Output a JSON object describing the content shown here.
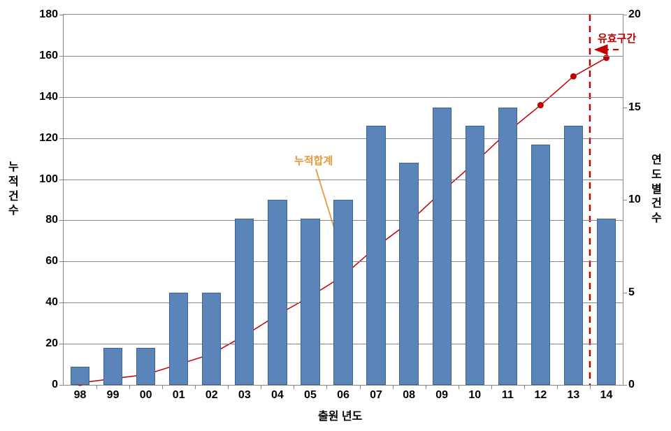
{
  "chart": {
    "type": "combo-bar-line",
    "background_color": "#ffffff",
    "plot_border_color": "#868686",
    "grid_color": "#868686",
    "xaxis": {
      "title": "출원 년도",
      "categories": [
        "98",
        "99",
        "00",
        "01",
        "02",
        "03",
        "04",
        "05",
        "06",
        "07",
        "08",
        "09",
        "10",
        "11",
        "12",
        "13",
        "14"
      ],
      "label_fontsize": 16,
      "label_fontweight": "bold"
    },
    "yaxis_left": {
      "title": "누적건수",
      "min": 0,
      "max": 180,
      "tick_step": 20,
      "ticks": [
        0,
        20,
        40,
        60,
        80,
        100,
        120,
        140,
        160,
        180
      ],
      "label_fontsize": 16
    },
    "yaxis_right": {
      "title": "연도별건수",
      "min": 0,
      "max": 20,
      "tick_step": 5,
      "ticks": [
        0,
        5,
        10,
        15,
        20
      ],
      "label_fontsize": 16
    },
    "bars": {
      "values_right_axis": [
        1,
        2,
        2,
        5,
        5,
        9,
        10,
        9,
        10,
        14,
        12,
        15,
        14,
        15,
        13,
        14,
        9
      ],
      "color": "#5b84b9",
      "border_color": "#3b6394",
      "width_fraction": 0.58
    },
    "line": {
      "values_left_axis": [
        1,
        3,
        5,
        10,
        15,
        24,
        34,
        43,
        53,
        67,
        79,
        94,
        108,
        123,
        136,
        150,
        159
      ],
      "line_color": "#c00000",
      "line_width": 1.5,
      "marker_color": "#c00000",
      "marker_radius": 4.5,
      "marker_type": "circle"
    },
    "annotations": {
      "cumulative": {
        "text": "누적합계",
        "color": "#e69b3a",
        "fontsize": 15,
        "arrow_color": "#e69b3a"
      },
      "valid_range": {
        "text": "유효구간",
        "color": "#c00000",
        "fontsize": 15,
        "arrow_color": "#c00000",
        "dashed_line_color": "#c00000",
        "dashed_line_x_category_after": "13"
      }
    }
  }
}
